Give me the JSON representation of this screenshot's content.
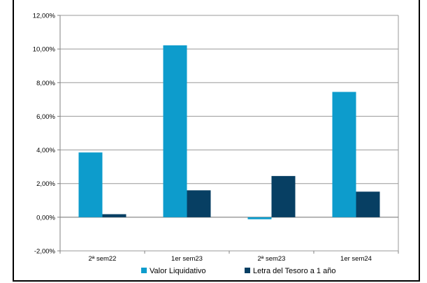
{
  "chart_data": {
    "type": "bar",
    "title": "",
    "xlabel": "",
    "ylabel": "",
    "categories": [
      "2ª sem22",
      "1er sem23",
      "2ª sem23",
      "1er sem24"
    ],
    "series": [
      {
        "name": "Valor Liquidativo",
        "values": [
          3.85,
          10.22,
          -0.12,
          7.45
        ],
        "color": "#0d9ccc"
      },
      {
        "name": "Letra del Tesoro a 1 año",
        "values": [
          0.18,
          1.6,
          2.45,
          1.52
        ],
        "color": "#073f63"
      }
    ],
    "ylim": [
      -2,
      12
    ],
    "yticks": [
      -2,
      0,
      2,
      4,
      6,
      8,
      10,
      12
    ],
    "ytick_labels": [
      "-2,00%",
      "0,00%",
      "2,00%",
      "4,00%",
      "6,00%",
      "8,00%",
      "10,00%",
      "12,00%"
    ],
    "grid": true,
    "legend_position": "bottom"
  }
}
